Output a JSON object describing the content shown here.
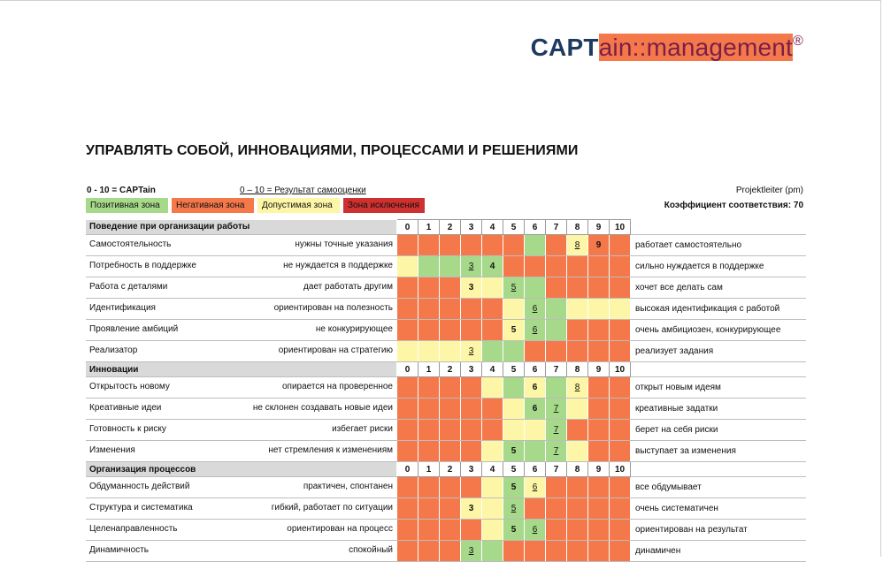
{
  "logo": {
    "bold": "CAPT",
    "rest": "ain::management",
    "reg": "®"
  },
  "title": "УПРАВЛЯТЬ СОБОЙ, ИННОВАЦИЯМИ, ПРОЦЕССАМИ И РЕШЕНИЯМИ",
  "scale_label": "0 - 10 = CAPTain",
  "scale_self": "0 – 10 = Результат самооценки",
  "role": "Projektleiter (pm)",
  "coefficient": "Коэффициент соответствия: 70",
  "legend": [
    "Позитивная зона",
    "Негативная зона",
    "Допустимая зона",
    "Зона исключения"
  ],
  "scale": [
    "0",
    "1",
    "2",
    "3",
    "4",
    "5",
    "6",
    "7",
    "8",
    "9",
    "10"
  ],
  "rows": [
    {
      "type": "header",
      "label": "Поведение при организации работы"
    },
    {
      "type": "row",
      "left": "Самостоятельность",
      "lp": "нужны точные указания",
      "zones": "nnnnnngnanna",
      "c": 9,
      "s": 8,
      "right": "работает самостоятельно"
    },
    {
      "type": "row",
      "left": "Потребность в поддержке",
      "lp": "не нуждается в поддержке",
      "zones": "aggggnnnnnn",
      "c": 4,
      "s": 3,
      "right": "сильно нуждается в поддержке"
    },
    {
      "type": "row",
      "left": "Работа с деталями",
      "lp": "дает работать другим",
      "zones": "nnnaaggnnnn",
      "c": 3,
      "s": 5,
      "right": "хочет все делать сам"
    },
    {
      "type": "row",
      "left": "Идентификация",
      "lp": "ориентирован на полезность",
      "zones": "nnnnnaggaaa",
      "c": null,
      "s": 6,
      "right": "высокая идентификация с работой"
    },
    {
      "type": "row",
      "left": "Проявление амбиций",
      "lp": "не конкурирующее",
      "zones": "nnnnnaggnnn",
      "c": 5,
      "s": 6,
      "right": "очень амбициозен, конкурирующее"
    },
    {
      "type": "row",
      "left": "Реализатор",
      "lp": "ориентирован на стратегию",
      "zones": "aaaaggnnnnn",
      "c": null,
      "s": 3,
      "right": "реализует задания"
    },
    {
      "type": "header",
      "label": "Инновации"
    },
    {
      "type": "row",
      "left": "Открытость новому",
      "lp": "опирается на проверенное",
      "zones": "nnnnagagann",
      "c": 6,
      "s": 8,
      "right": "открыт новым идеям"
    },
    {
      "type": "row",
      "left": "Креативные идеи",
      "lp": "не склонен создавать новые идеи",
      "zones": "nnnnnagganna",
      "c": 6,
      "s": 7,
      "right": "креативные задатки"
    },
    {
      "type": "row",
      "left": "Готовность к риску",
      "lp": "избегает риски",
      "zones": "nnnnnaagnnn",
      "c": null,
      "s": 7,
      "right": "берет на себя риски"
    },
    {
      "type": "row",
      "left": "Изменения",
      "lp": "нет стремления к изменениям",
      "zones": "nnnnaggganna",
      "c": 5,
      "s": 7,
      "right": "выступает за изменения"
    },
    {
      "type": "header",
      "label": "Организация процессов"
    },
    {
      "type": "row",
      "left": "Обдуманность действий",
      "lp": "практичен, спонтанен",
      "zones": "nnnnagannnn",
      "c": 5,
      "s": 6,
      "right": "все обдумывает"
    },
    {
      "type": "row",
      "left": "Структура и систематика",
      "lp": "гибкий, работает по ситуации",
      "zones": "nnnaagnnnnn",
      "c": 3,
      "s": 5,
      "right": "очень систематичен"
    },
    {
      "type": "row",
      "left": "Целенаправленность",
      "lp": "ориентирован на процесс",
      "zones": "nnnnaggnnnn",
      "c": 5,
      "s": 6,
      "right": "ориентирован на результат"
    },
    {
      "type": "row",
      "left": "Динамичность",
      "lp": "спокойный",
      "zones": "nnnggnnnnnn",
      "c": null,
      "s": 3,
      "right": "динамичен"
    }
  ]
}
